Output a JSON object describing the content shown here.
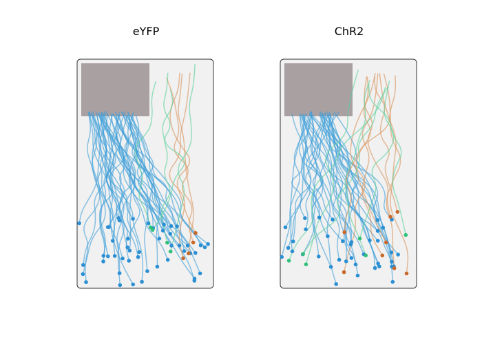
{
  "colors": {
    "blue": "#3d9fd8",
    "orange": "#d9925a",
    "green": "#5bd19c",
    "blue_dot": "#2b8fd3",
    "orange_dot": "#c8682b",
    "green_dot": "#2fc07a",
    "arena_fill": "#f1f1f1",
    "arena_border": "#333333",
    "zone_fill": "#a9a0a2"
  },
  "chart_data": [
    {
      "type": "line",
      "title": "eYFP",
      "series": [
        {
          "color": "blue",
          "count": 48
        },
        {
          "color": "orange",
          "count": 4
        },
        {
          "color": "green",
          "count": 4
        }
      ]
    },
    {
      "type": "line",
      "title": "ChR2",
      "series": [
        {
          "color": "blue",
          "count": 38
        },
        {
          "color": "orange",
          "count": 8
        },
        {
          "color": "green",
          "count": 6
        }
      ]
    }
  ]
}
